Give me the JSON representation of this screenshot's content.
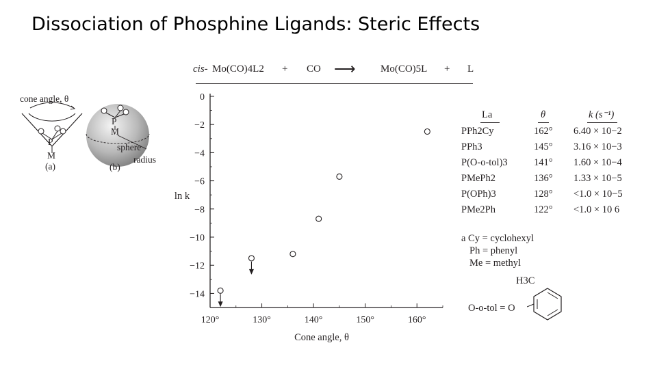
{
  "slide_title": "Dissociation of Phosphine Ligands: Steric Effects",
  "equation": {
    "prefix": "cis-",
    "reactant": "Mo(CO)4L2",
    "plus1": "+",
    "co": "CO",
    "arrow": "⟶",
    "product": "Mo(CO)5L",
    "plus2": "+",
    "l": "L"
  },
  "diagram": {
    "cone_angle_label": "cone angle, θ",
    "p_label_a": "P",
    "m_label_a": "M",
    "caption_a": "(a)",
    "p_label_b": "P",
    "m_label_b": "M",
    "sphere_label": "sphere",
    "radius_label": "radius",
    "caption_b": "(b)"
  },
  "table": {
    "headers": [
      "La",
      "θ",
      "k (s⁻¹)"
    ],
    "rows": [
      {
        "ligand": "PPh2Cy",
        "theta": "162°",
        "k": "6.40 × 10−2"
      },
      {
        "ligand": "PPh3",
        "theta": "145°",
        "k": "3.16 × 10−3"
      },
      {
        "ligand": "P(O-o-tol)3",
        "theta": "141°",
        "k": "1.60 × 10−4"
      },
      {
        "ligand": "PMePh2",
        "theta": "136°",
        "k": "1.33 × 10−5"
      },
      {
        "ligand": "P(OPh)3",
        "theta": "128°",
        "k": "<1.0 × 10−5"
      },
      {
        "ligand": "PMe2Ph",
        "theta": "122°",
        "k": "<1.0 × 10 6"
      }
    ]
  },
  "footnotes": {
    "a": "a Cy = cyclohexyl",
    "ph": "Ph = phenyl",
    "me": "Me = methyl",
    "methyl_group": "H3C",
    "otol": "O-o-tol = O"
  },
  "chart_data": {
    "type": "scatter",
    "title": "",
    "xlabel": "Cone angle, θ",
    "ylabel": "ln k",
    "xlim": [
      120,
      165
    ],
    "ylim": [
      -15,
      0
    ],
    "xticks": [
      120,
      130,
      140,
      150,
      160
    ],
    "xtick_labels": [
      "120°",
      "130°",
      "140°",
      "150°",
      "160°"
    ],
    "yticks": [
      0,
      -2,
      -4,
      -6,
      -8,
      -10,
      -12,
      -14
    ],
    "ytick_labels": [
      "0",
      "−2",
      "−4",
      "−6",
      "−8",
      "−10",
      "−12",
      "−14"
    ],
    "grid": false,
    "points": [
      {
        "x": 122,
        "y": -13.8,
        "upper_limit": true
      },
      {
        "x": 128,
        "y": -11.5,
        "upper_limit": true
      },
      {
        "x": 136,
        "y": -11.2,
        "upper_limit": false
      },
      {
        "x": 141,
        "y": -8.7,
        "upper_limit": false
      },
      {
        "x": 145,
        "y": -5.7,
        "upper_limit": false
      },
      {
        "x": 162,
        "y": -2.5,
        "upper_limit": false
      }
    ]
  }
}
